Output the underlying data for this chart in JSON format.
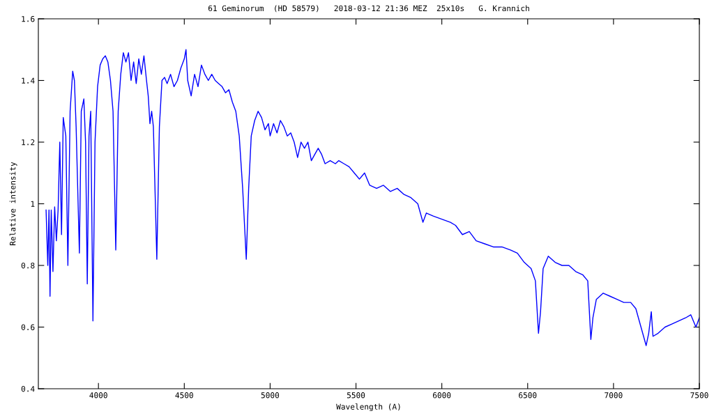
{
  "chart_data": {
    "type": "line",
    "title": "61 Geminorum  (HD 58579)   2018-03-12 21:36 MEZ  25x10s   G. Krannich",
    "xlabel": "Wavelength (A)",
    "ylabel": "Relative intensity",
    "xlim": [
      3650,
      7500
    ],
    "ylim": [
      0.4,
      1.6
    ],
    "xticks": [
      4000,
      4500,
      5000,
      5500,
      6000,
      6500,
      7000,
      7500
    ],
    "yticks": [
      0.4,
      0.6,
      0.8,
      {
        "value": 1,
        "label": "1"
      },
      1.2,
      1.4,
      1.6
    ],
    "grid": false,
    "marker": "none",
    "line_style": "solid",
    "series": [
      {
        "color": "#0000ff",
        "x": [
          3695,
          3705,
          3712,
          3718,
          3725,
          3735,
          3745,
          3755,
          3765,
          3775,
          3785,
          3795,
          3810,
          3822,
          3835,
          3850,
          3860,
          3870,
          3889,
          3900,
          3915,
          3925,
          3935,
          3945,
          3955,
          3968,
          3980,
          3995,
          4010,
          4025,
          4040,
          4055,
          4070,
          4085,
          4101,
          4115,
          4130,
          4145,
          4160,
          4175,
          4190,
          4205,
          4220,
          4235,
          4250,
          4265,
          4280,
          4290,
          4300,
          4310,
          4320,
          4340,
          4355,
          4370,
          4385,
          4400,
          4420,
          4440,
          4460,
          4480,
          4500,
          4510,
          4520,
          4540,
          4560,
          4580,
          4600,
          4620,
          4640,
          4660,
          4680,
          4700,
          4720,
          4740,
          4760,
          4780,
          4800,
          4820,
          4840,
          4861,
          4875,
          4890,
          4910,
          4930,
          4950,
          4970,
          4990,
          5000,
          5020,
          5040,
          5060,
          5080,
          5100,
          5120,
          5140,
          5160,
          5180,
          5200,
          5220,
          5240,
          5260,
          5280,
          5300,
          5320,
          5350,
          5380,
          5400,
          5430,
          5460,
          5490,
          5520,
          5550,
          5580,
          5620,
          5660,
          5700,
          5740,
          5780,
          5820,
          5860,
          5890,
          5910,
          5950,
          6000,
          6050,
          6080,
          6120,
          6160,
          6200,
          6250,
          6300,
          6350,
          6400,
          6440,
          6480,
          6520,
          6545,
          6563,
          6575,
          6590,
          6620,
          6660,
          6700,
          6740,
          6780,
          6820,
          6850,
          6868,
          6880,
          6900,
          6940,
          6980,
          7020,
          7060,
          7100,
          7130,
          7160,
          7190,
          7205,
          7220,
          7230,
          7260,
          7300,
          7340,
          7380,
          7420,
          7450,
          7480,
          7500
        ],
        "values": [
          0.98,
          0.8,
          0.98,
          0.7,
          0.98,
          0.78,
          0.99,
          0.88,
          0.98,
          1.2,
          0.9,
          1.28,
          1.22,
          0.8,
          1.3,
          1.43,
          1.4,
          1.25,
          0.84,
          1.3,
          1.34,
          1.2,
          0.74,
          1.22,
          1.3,
          0.62,
          1.2,
          1.38,
          1.45,
          1.47,
          1.48,
          1.46,
          1.4,
          1.3,
          0.85,
          1.3,
          1.42,
          1.49,
          1.46,
          1.49,
          1.4,
          1.46,
          1.39,
          1.47,
          1.42,
          1.48,
          1.4,
          1.35,
          1.26,
          1.3,
          1.25,
          0.82,
          1.25,
          1.4,
          1.41,
          1.39,
          1.42,
          1.38,
          1.4,
          1.44,
          1.47,
          1.5,
          1.4,
          1.35,
          1.42,
          1.38,
          1.45,
          1.42,
          1.4,
          1.42,
          1.4,
          1.39,
          1.38,
          1.36,
          1.37,
          1.33,
          1.3,
          1.22,
          1.05,
          0.82,
          1.05,
          1.22,
          1.27,
          1.3,
          1.28,
          1.24,
          1.26,
          1.22,
          1.26,
          1.23,
          1.27,
          1.25,
          1.22,
          1.23,
          1.2,
          1.15,
          1.2,
          1.18,
          1.2,
          1.14,
          1.16,
          1.18,
          1.16,
          1.13,
          1.14,
          1.13,
          1.14,
          1.13,
          1.12,
          1.1,
          1.08,
          1.1,
          1.06,
          1.05,
          1.06,
          1.04,
          1.05,
          1.03,
          1.02,
          1.0,
          0.94,
          0.97,
          0.96,
          0.95,
          0.94,
          0.93,
          0.9,
          0.91,
          0.88,
          0.87,
          0.86,
          0.86,
          0.85,
          0.84,
          0.81,
          0.79,
          0.75,
          0.58,
          0.65,
          0.79,
          0.83,
          0.81,
          0.8,
          0.8,
          0.78,
          0.77,
          0.75,
          0.56,
          0.63,
          0.69,
          0.71,
          0.7,
          0.69,
          0.68,
          0.68,
          0.66,
          0.6,
          0.54,
          0.58,
          0.65,
          0.57,
          0.58,
          0.6,
          0.61,
          0.62,
          0.63,
          0.64,
          0.6,
          0.63
        ]
      }
    ]
  }
}
